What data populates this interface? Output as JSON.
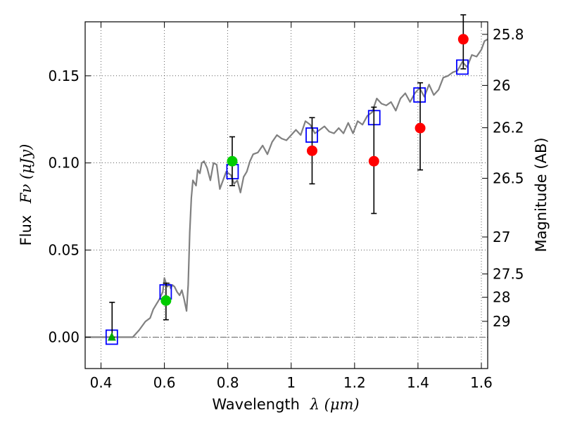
{
  "chart_data": {
    "type": "scatter",
    "title": "",
    "xlabel_text": "Wavelength",
    "xlabel_math": "λ (μm)",
    "ylabel_text": "Flux",
    "ylabel_math": "Fν (μJy)",
    "y2label": "Magnitude (AB)",
    "xlim": [
      0.35,
      1.62
    ],
    "ylim": [
      -0.018,
      0.181
    ],
    "xticks": [
      0.4,
      0.6,
      0.8,
      1.0,
      1.2,
      1.4,
      1.6
    ],
    "xtick_labels": [
      "0.4",
      "0.6",
      "0.8",
      "1",
      "1.2",
      "1.4",
      "1.6"
    ],
    "yticks": [
      0.0,
      0.05,
      0.1,
      0.15
    ],
    "ytick_labels": [
      "0.00",
      "0.05",
      "0.10",
      "0.15"
    ],
    "y2ticks": [
      {
        "label": "25.8",
        "flux": 0.1738
      },
      {
        "label": "26",
        "flux": 0.1445
      },
      {
        "label": "26.2",
        "flux": 0.1202
      },
      {
        "label": "26.5",
        "flux": 0.0912
      },
      {
        "label": "27",
        "flux": 0.0575
      },
      {
        "label": "27.5",
        "flux": 0.0363
      },
      {
        "label": "28",
        "flux": 0.0229
      },
      {
        "label": "29",
        "flux": 0.0091
      }
    ],
    "grid": true,
    "colors": {
      "sed": "#808080",
      "model_box": "#0000ff",
      "red_point": "#ff0000",
      "green_point": "#00cc00",
      "errorbar": "#000000",
      "zero_line": "#666666"
    },
    "series": [
      {
        "type": "line",
        "color": "#808080",
        "x": [
          0.35,
          0.5,
          0.52,
          0.54,
          0.555,
          0.565,
          0.575,
          0.585,
          0.595,
          0.6,
          0.605,
          0.61,
          0.615,
          0.62,
          0.625,
          0.632,
          0.64,
          0.648,
          0.655,
          0.662,
          0.67,
          0.675,
          0.68,
          0.685,
          0.69,
          0.7,
          0.705,
          0.712,
          0.718,
          0.725,
          0.735,
          0.745,
          0.755,
          0.765,
          0.775,
          0.785,
          0.795,
          0.81,
          0.82,
          0.83,
          0.84,
          0.85,
          0.86,
          0.87,
          0.88,
          0.895,
          0.91,
          0.925,
          0.94,
          0.955,
          0.97,
          0.985,
          1.0,
          1.015,
          1.03,
          1.045,
          1.06,
          1.075,
          1.09,
          1.105,
          1.12,
          1.135,
          1.15,
          1.165,
          1.18,
          1.195,
          1.21,
          1.225,
          1.24,
          1.255,
          1.27,
          1.285,
          1.3,
          1.315,
          1.33,
          1.345,
          1.36,
          1.375,
          1.39,
          1.405,
          1.42,
          1.435,
          1.45,
          1.465,
          1.48,
          1.495,
          1.51,
          1.525,
          1.54,
          1.555,
          1.57,
          1.585,
          1.6,
          1.61,
          1.62
        ],
        "y": [
          0.0,
          0.0,
          0.004,
          0.009,
          0.011,
          0.016,
          0.019,
          0.022,
          0.026,
          0.034,
          0.031,
          0.029,
          0.031,
          0.028,
          0.03,
          0.029,
          0.026,
          0.024,
          0.027,
          0.022,
          0.015,
          0.03,
          0.06,
          0.08,
          0.09,
          0.087,
          0.096,
          0.094,
          0.1,
          0.101,
          0.097,
          0.09,
          0.1,
          0.099,
          0.085,
          0.09,
          0.095,
          0.093,
          0.088,
          0.09,
          0.083,
          0.092,
          0.095,
          0.101,
          0.105,
          0.106,
          0.11,
          0.105,
          0.112,
          0.116,
          0.114,
          0.113,
          0.116,
          0.119,
          0.116,
          0.124,
          0.122,
          0.117,
          0.119,
          0.121,
          0.118,
          0.117,
          0.12,
          0.117,
          0.123,
          0.117,
          0.124,
          0.122,
          0.127,
          0.129,
          0.137,
          0.134,
          0.133,
          0.135,
          0.13,
          0.137,
          0.14,
          0.135,
          0.14,
          0.143,
          0.138,
          0.145,
          0.139,
          0.142,
          0.149,
          0.15,
          0.152,
          0.153,
          0.158,
          0.155,
          0.162,
          0.161,
          0.165,
          0.17,
          0.171
        ]
      },
      {
        "type": "box",
        "color": "#0000ff",
        "x": [
          0.434,
          0.604,
          0.815,
          1.065,
          1.262,
          1.405,
          1.54
        ],
        "y": [
          0.0,
          0.026,
          0.095,
          0.116,
          0.126,
          0.139,
          0.155
        ]
      },
      {
        "type": "errorbar",
        "color": "#000000",
        "x": [
          0.435,
          0.605,
          0.814,
          1.066,
          1.261,
          1.407,
          1.543
        ],
        "center": [
          0.0,
          0.021,
          0.101,
          0.107,
          0.101,
          0.12,
          0.171
        ],
        "lower": [
          0.0,
          0.01,
          0.087,
          0.088,
          0.071,
          0.096,
          0.154
        ],
        "upper": [
          0.02,
          0.031,
          0.115,
          0.126,
          0.132,
          0.146,
          0.185
        ]
      },
      {
        "type": "point",
        "color": "#ff0000",
        "x": [
          1.066,
          1.261,
          1.407,
          1.543
        ],
        "y": [
          0.107,
          0.101,
          0.12,
          0.171
        ]
      },
      {
        "type": "point",
        "color": "#00cc00",
        "x": [
          0.605,
          0.814
        ],
        "y": [
          0.021,
          0.101
        ]
      },
      {
        "type": "triangle",
        "color": "#00aa00",
        "x": [
          0.434
        ],
        "y": [
          0.0
        ]
      }
    ]
  }
}
